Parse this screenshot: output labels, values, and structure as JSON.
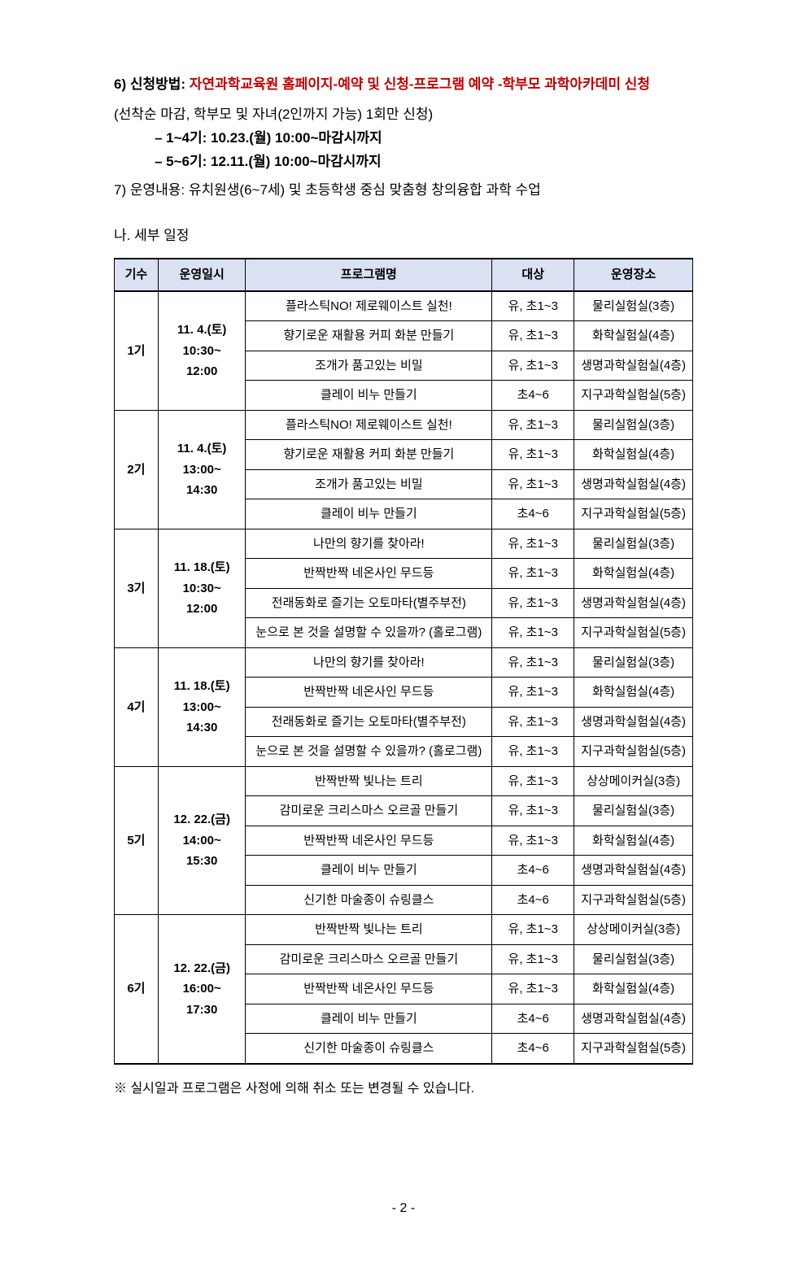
{
  "item6": {
    "label": "6) 신청방법:",
    "line1": "자연과학교육원 홈페이지-예약 및 신청-프로그램 예약 -학부모 과학아카데미 신청",
    "line2": "(선착순 마감, 학부모 및 자녀(2인까지 가능) 1회만 신청)",
    "sub1": "– 1~4기: 10.23.(월) 10:00~마감시까지",
    "sub2": "– 5~6기: 12.11.(월) 10:00~마감시까지"
  },
  "item7": {
    "text": "7) 운영내용: 유치원생(6~7세) 및 초등학생 중심 맞춤형 창의융합 과학 수업"
  },
  "sectionB": {
    "title": "나. 세부 일정"
  },
  "table": {
    "headers": [
      "기수",
      "운영일시",
      "프로그램명",
      "대상",
      "운영장소"
    ],
    "groups": [
      {
        "gisu": "1기",
        "date": "11. 4.(토)\n10:30~\n12:00",
        "rows": [
          {
            "prog": "플라스틱NO! 제로웨이스트 실천!",
            "target": "유, 초1~3",
            "place": "물리실험실(3층)"
          },
          {
            "prog": "향기로운 재활용 커피 화분 만들기",
            "target": "유, 초1~3",
            "place": "화학실험실(4층)"
          },
          {
            "prog": "조개가 품고있는 비밀",
            "target": "유, 초1~3",
            "place": "생명과학실험실(4층)"
          },
          {
            "prog": "클레이 비누 만들기",
            "target": "초4~6",
            "place": "지구과학실험실(5층)"
          }
        ]
      },
      {
        "gisu": "2기",
        "date": "11. 4.(토)\n13:00~\n14:30",
        "rows": [
          {
            "prog": "플라스틱NO! 제로웨이스트 실천!",
            "target": "유, 초1~3",
            "place": "물리실험실(3층)"
          },
          {
            "prog": "향기로운 재활용 커피 화분 만들기",
            "target": "유, 초1~3",
            "place": "화학실험실(4층)"
          },
          {
            "prog": "조개가 품고있는 비밀",
            "target": "유, 초1~3",
            "place": "생명과학실험실(4층)"
          },
          {
            "prog": "클레이 비누 만들기",
            "target": "초4~6",
            "place": "지구과학실험실(5층)"
          }
        ]
      },
      {
        "gisu": "3기",
        "date": "11. 18.(토)\n10:30~\n12:00",
        "rows": [
          {
            "prog": "나만의 향기를 찾아라!",
            "target": "유, 초1~3",
            "place": "물리실험실(3층)"
          },
          {
            "prog": "반짝반짝 네온사인 무드등",
            "target": "유, 초1~3",
            "place": "화학실험실(4층)"
          },
          {
            "prog": "전래동화로 즐기는 오토마타(별주부전)",
            "target": "유, 초1~3",
            "place": "생명과학실험실(4층)"
          },
          {
            "prog": "눈으로 본 것을 설명할 수 있을까?  (홀로그램)",
            "target": "유, 초1~3",
            "place": "지구과학실험실(5층)"
          }
        ]
      },
      {
        "gisu": "4기",
        "date": "11. 18.(토)\n13:00~\n14:30",
        "rows": [
          {
            "prog": "나만의 향기를 찾아라!",
            "target": "유, 초1~3",
            "place": "물리실험실(3층)"
          },
          {
            "prog": "반짝반짝 네온사인 무드등",
            "target": "유, 초1~3",
            "place": "화학실험실(4층)"
          },
          {
            "prog": "전래동화로 즐기는 오토마타(별주부전)",
            "target": "유, 초1~3",
            "place": "생명과학실험실(4층)"
          },
          {
            "prog": "눈으로 본 것을 설명할 수 있을까? (홀로그램)",
            "target": "유, 초1~3",
            "place": "지구과학실험실(5층)"
          }
        ]
      },
      {
        "gisu": "5기",
        "date": "12. 22.(금)\n14:00~\n15:30",
        "rows": [
          {
            "prog": "반짝반짝 빛나는 트리",
            "target": "유, 초1~3",
            "place": "상상메이커실(3층)"
          },
          {
            "prog": "감미로운 크리스마스 오르골 만들기",
            "target": "유, 초1~3",
            "place": "물리실험실(3층)"
          },
          {
            "prog": "반짝반짝 네온사인 무드등",
            "target": "유, 초1~3",
            "place": "화학실험실(4층)"
          },
          {
            "prog": "클레이 비누 만들기",
            "target": "초4~6",
            "place": "생명과학실험실(4층)"
          },
          {
            "prog": "신기한 마술종이 슈링클스",
            "target": "초4~6",
            "place": "지구과학실험실(5층)"
          }
        ]
      },
      {
        "gisu": "6기",
        "date": "12. 22.(금)\n16:00~\n17:30",
        "rows": [
          {
            "prog": "반짝반짝 빛나는 트리",
            "target": "유, 초1~3",
            "place": "상상메이커실(3층)"
          },
          {
            "prog": "감미로운 크리스마스 오르골 만들기",
            "target": "유, 초1~3",
            "place": "물리실험실(3층)"
          },
          {
            "prog": "반짝반짝 네온사인 무드등",
            "target": "유, 초1~3",
            "place": "화학실험실(4층)"
          },
          {
            "prog": "클레이 비누 만들기",
            "target": "초4~6",
            "place": "생명과학실험실(4층)"
          },
          {
            "prog": "신기한 마술종이 슈링클스",
            "target": "초4~6",
            "place": "지구과학실험실(5층)"
          }
        ]
      }
    ]
  },
  "note": {
    "text": "※ 실시일과 프로그램은 사정에 의해 취소 또는 변경될 수 있습니다."
  },
  "pageNum": {
    "text": "- 2 -"
  }
}
